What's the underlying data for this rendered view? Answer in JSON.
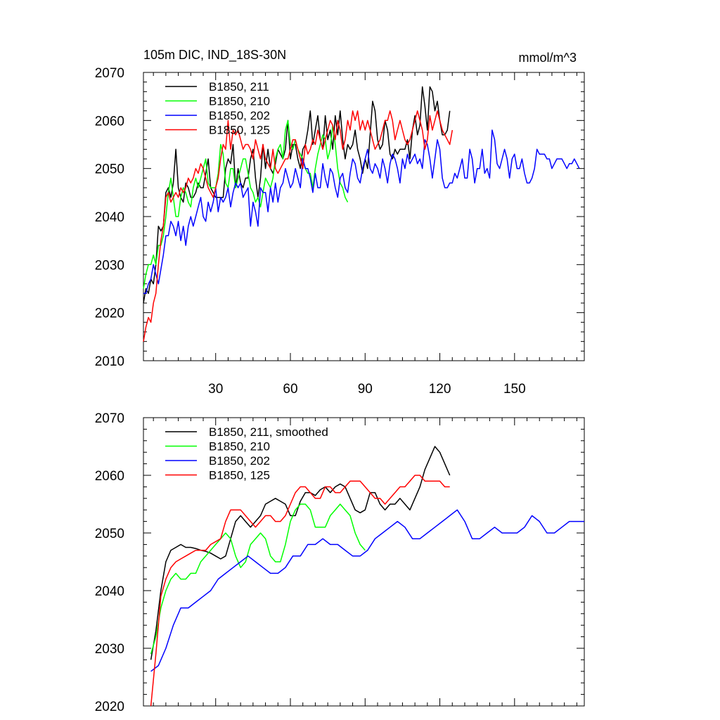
{
  "figure": {
    "title_left": "105m DIC, IND_18S-30N",
    "title_right": "mmol/m^3"
  },
  "chart_data": [
    {
      "type": "line",
      "xlim": [
        1,
        178
      ],
      "ylim": [
        2010,
        2070
      ],
      "xticks": [
        30,
        60,
        90,
        120,
        150
      ],
      "yticks": [
        2010,
        2020,
        2030,
        2040,
        2050,
        2060,
        2070
      ],
      "xticks_labeled": true,
      "grid": false,
      "legend_position": "top-left",
      "series": [
        {
          "name": "B1850, 211",
          "color": "#000000",
          "x_start": 1,
          "y": [
            2022,
            2025,
            2024,
            2027,
            2026,
            2030,
            2038,
            2037,
            2038,
            2045,
            2046,
            2044,
            2047,
            2054,
            2046,
            2044,
            2043,
            2047,
            2046,
            2044,
            2044,
            2045,
            2047,
            2046,
            2046,
            2049,
            2052,
            2046,
            2045,
            2044,
            2044,
            2044,
            2044,
            2050,
            2052,
            2051,
            2055,
            2046,
            2050,
            2047,
            2046,
            2048,
            2048,
            2052,
            2054,
            2048,
            2044,
            2048,
            2055,
            2050,
            2054,
            2050,
            2049,
            2051,
            2054,
            2053,
            2052,
            2054,
            2060,
            2052,
            2055,
            2055,
            2052,
            2050,
            2054,
            2055,
            2058,
            2062,
            2055,
            2058,
            2061,
            2056,
            2054,
            2061,
            2056,
            2058,
            2054,
            2061,
            2057,
            2062,
            2056,
            2052,
            2055,
            2054,
            2055,
            2058,
            2054,
            2052,
            2049,
            2052,
            2050,
            2057,
            2064,
            2062,
            2056,
            2054,
            2055,
            2060,
            2058,
            2053,
            2052,
            2054,
            2053,
            2054,
            2054,
            2054,
            2056,
            2052,
            2058,
            2061,
            2057,
            2059,
            2067,
            2063,
            2058,
            2067,
            2066,
            2062,
            2064,
            2060,
            2057,
            2057,
            2058,
            2062
          ]
        },
        {
          "name": "B1850, 210",
          "color": "#00ff00",
          "x_start": 1,
          "y": [
            2025,
            2028,
            2030,
            2030,
            2032,
            2030,
            2034,
            2034,
            2036,
            2040,
            2045,
            2048,
            2044,
            2040,
            2040,
            2044,
            2046,
            2045,
            2043,
            2042,
            2046,
            2048,
            2046,
            2048,
            2050,
            2052,
            2047,
            2046,
            2046,
            2046,
            2049,
            2055,
            2053,
            2047,
            2046,
            2050,
            2050,
            2046,
            2048,
            2050,
            2052,
            2052,
            2049,
            2046,
            2045,
            2043,
            2044,
            2042,
            2045,
            2048,
            2047,
            2046,
            2048,
            2052,
            2054,
            2055,
            2052,
            2058,
            2060,
            2055,
            2054,
            2056,
            2054,
            2053,
            2052,
            2050,
            2049,
            2049,
            2046,
            2050,
            2053,
            2055,
            2057,
            2056,
            2052,
            2054,
            2059,
            2055,
            2050,
            2047,
            2046,
            2044,
            2043
          ]
        },
        {
          "name": "B1850, 202",
          "color": "#0000ff",
          "x_start": 1,
          "y": [
            2024,
            2024,
            2026,
            2027,
            2030,
            2028,
            2026,
            2029,
            2032,
            2036,
            2036,
            2039,
            2038,
            2036,
            2039,
            2035,
            2038,
            2034,
            2038,
            2040,
            2038,
            2040,
            2042,
            2044,
            2040,
            2039,
            2043,
            2041,
            2043,
            2046,
            2041,
            2044,
            2043,
            2044,
            2046,
            2042,
            2045,
            2047,
            2046,
            2047,
            2044,
            2045,
            2046,
            2038,
            2043,
            2041,
            2038,
            2046,
            2045,
            2045,
            2041,
            2046,
            2043,
            2047,
            2043,
            2046,
            2047,
            2050,
            2048,
            2046,
            2047,
            2050,
            2048,
            2046,
            2052,
            2050,
            2050,
            2048,
            2045,
            2049,
            2046,
            2046,
            2051,
            2048,
            2046,
            2050,
            2049,
            2046,
            2044,
            2048,
            2049,
            2046,
            2045,
            2049,
            2052,
            2051,
            2048,
            2047,
            2050,
            2052,
            2054,
            2050,
            2049,
            2051,
            2050,
            2048,
            2052,
            2050,
            2047,
            2051,
            2053,
            2052,
            2050,
            2047,
            2052,
            2050,
            2053,
            2051,
            2052,
            2053,
            2051,
            2052,
            2050,
            2056,
            2055,
            2052,
            2048,
            2052,
            2056,
            2054,
            2048,
            2046,
            2046,
            2047,
            2047,
            2049,
            2048,
            2050,
            2052,
            2048,
            2048,
            2054,
            2052,
            2047,
            2050,
            2050,
            2054,
            2049,
            2050,
            2048,
            2058,
            2056,
            2051,
            2050,
            2052,
            2054,
            2052,
            2048,
            2052,
            2053,
            2050,
            2050,
            2052,
            2049,
            2047,
            2047,
            2048,
            2050,
            2054,
            2053,
            2053,
            2053,
            2052,
            2052,
            2050,
            2051,
            2052,
            2052,
            2052,
            2051,
            2050,
            2051,
            2051,
            2052,
            2051,
            2050
          ]
        },
        {
          "name": "B1850, 125",
          "color": "#ff0000",
          "x_start": 1,
          "y": [
            2014,
            2017,
            2019,
            2018,
            2022,
            2024,
            2030,
            2035,
            2038,
            2044,
            2045,
            2043,
            2044,
            2045,
            2044,
            2046,
            2045,
            2046,
            2048,
            2047,
            2048,
            2050,
            2049,
            2051,
            2050,
            2048,
            2046,
            2045,
            2044,
            2046,
            2048,
            2052,
            2055,
            2054,
            2060,
            2054,
            2058,
            2057,
            2058,
            2056,
            2054,
            2055,
            2055,
            2054,
            2052,
            2056,
            2054,
            2052,
            2055,
            2052,
            2051,
            2050,
            2054,
            2050,
            2049,
            2050,
            2051,
            2052,
            2052,
            2054,
            2056,
            2056,
            2054,
            2052,
            2050,
            2055,
            2053,
            2054,
            2056,
            2055,
            2058,
            2056,
            2054,
            2056,
            2058,
            2060,
            2059,
            2056,
            2060,
            2058,
            2054,
            2056,
            2060,
            2058,
            2062,
            2060,
            2062,
            2058,
            2060,
            2058,
            2060,
            2058,
            2056,
            2054,
            2055,
            2056,
            2058,
            2060,
            2060,
            2062,
            2060,
            2056,
            2058,
            2060,
            2058,
            2056,
            2055,
            2056,
            2058,
            2060,
            2062,
            2060,
            2058,
            2054,
            2056,
            2061,
            2058,
            2060,
            2062,
            2060,
            2058,
            2057,
            2056,
            2055,
            2058
          ]
        }
      ]
    },
    {
      "type": "line",
      "xlim": [
        1,
        178
      ],
      "ylim": [
        2020,
        2070
      ],
      "xticks": [
        30,
        60,
        90,
        120,
        150
      ],
      "yticks": [
        2020,
        2030,
        2040,
        2050,
        2060,
        2070
      ],
      "xticks_labeled": false,
      "grid": false,
      "legend_position": "top-left",
      "series": [
        {
          "name": "B1850, 211, smoothed",
          "color": "#000000",
          "x": [
            4,
            6,
            8,
            10,
            12,
            14,
            16,
            18,
            20,
            22,
            24,
            26,
            28,
            30,
            32,
            34,
            36,
            38,
            40,
            42,
            44,
            46,
            48,
            50,
            52,
            54,
            56,
            58,
            60,
            62,
            64,
            66,
            68,
            70,
            72,
            74,
            76,
            78,
            80,
            82,
            84,
            86,
            88,
            90,
            92,
            94,
            96,
            98,
            100,
            102,
            104,
            106,
            108,
            110,
            112,
            114,
            116,
            118,
            120,
            122,
            124
          ],
          "y": [
            2028,
            2033,
            2040,
            2045,
            2047,
            2047.5,
            2048,
            2047.5,
            2047.5,
            2047.3,
            2047,
            2046.8,
            2046.5,
            2046,
            2045.5,
            2046,
            2049,
            2052,
            2053,
            2052,
            2051,
            2052,
            2053,
            2055,
            2055.5,
            2056,
            2055.5,
            2055,
            2053,
            2053,
            2055.5,
            2057,
            2057,
            2056.5,
            2057.5,
            2058,
            2057,
            2058,
            2058.5,
            2058,
            2056,
            2054,
            2053.5,
            2054,
            2057,
            2057,
            2055,
            2054,
            2055,
            2055,
            2056,
            2055,
            2054,
            2056,
            2058,
            2061,
            2063,
            2065,
            2064,
            2062,
            2060
          ]
        },
        {
          "name": "B1850, 210",
          "color": "#00ff00",
          "x": [
            4,
            6,
            8,
            10,
            12,
            14,
            16,
            18,
            20,
            22,
            24,
            26,
            28,
            30,
            32,
            34,
            36,
            38,
            40,
            42,
            44,
            46,
            48,
            50,
            52,
            54,
            56,
            58,
            60,
            62,
            64,
            66,
            68,
            70,
            72,
            74,
            76,
            78,
            80,
            82,
            84,
            86,
            88,
            90
          ],
          "y": [
            2029,
            2032,
            2037,
            2040,
            2042,
            2043,
            2042,
            2042,
            2043,
            2043,
            2045,
            2046,
            2047,
            2048,
            2049,
            2050,
            2049,
            2046,
            2044,
            2045,
            2048,
            2049,
            2050,
            2049,
            2046,
            2045,
            2045,
            2048,
            2052,
            2054,
            2055,
            2055,
            2054,
            2051,
            2051,
            2051,
            2053,
            2054,
            2055,
            2054,
            2053,
            2050,
            2048,
            2047
          ]
        },
        {
          "name": "B1850, 202",
          "color": "#0000ff",
          "x": [
            4,
            7,
            10,
            13,
            16,
            19,
            22,
            25,
            28,
            31,
            34,
            37,
            40,
            43,
            46,
            49,
            52,
            55,
            58,
            61,
            64,
            67,
            70,
            73,
            76,
            79,
            82,
            85,
            88,
            91,
            94,
            97,
            100,
            103,
            106,
            109,
            112,
            115,
            118,
            121,
            124,
            127,
            130,
            133,
            136,
            139,
            142,
            145,
            148,
            151,
            154,
            157,
            160,
            163,
            166,
            169,
            172,
            175,
            178
          ],
          "y": [
            2026,
            2027,
            2030,
            2034,
            2037,
            2037,
            2038,
            2039,
            2040,
            2042,
            2043,
            2044,
            2045,
            2046,
            2045,
            2044,
            2043,
            2043,
            2044,
            2046,
            2046,
            2048,
            2048,
            2049,
            2048,
            2048,
            2047,
            2046,
            2046,
            2047,
            2049,
            2050,
            2051,
            2052,
            2051,
            2049,
            2049,
            2050,
            2051,
            2052,
            2053,
            2054,
            2052,
            2049,
            2049,
            2050,
            2051,
            2050,
            2050,
            2050,
            2051,
            2053,
            2052,
            2050,
            2050,
            2051,
            2052,
            2052,
            2052
          ]
        },
        {
          "name": "B1850, 125",
          "color": "#ff0000",
          "x": [
            4,
            6,
            8,
            10,
            12,
            14,
            16,
            18,
            20,
            22,
            24,
            26,
            28,
            30,
            32,
            34,
            36,
            38,
            40,
            42,
            44,
            46,
            48,
            50,
            52,
            54,
            56,
            58,
            60,
            62,
            64,
            66,
            68,
            70,
            72,
            74,
            76,
            78,
            80,
            82,
            84,
            86,
            88,
            90,
            92,
            94,
            96,
            98,
            100,
            102,
            104,
            106,
            108,
            110,
            112,
            114,
            116,
            118,
            120,
            122,
            124
          ],
          "y": [
            2020,
            2029,
            2039,
            2042,
            2044,
            2045,
            2045.5,
            2046,
            2046.5,
            2047,
            2047,
            2047,
            2048,
            2048.5,
            2049,
            2052,
            2054,
            2054,
            2054,
            2053,
            2052,
            2051,
            2052,
            2053,
            2053,
            2052,
            2052,
            2053,
            2055,
            2057,
            2058,
            2058,
            2057,
            2056,
            2056,
            2058,
            2058,
            2057,
            2057,
            2058,
            2059,
            2059,
            2059,
            2058,
            2057,
            2056,
            2056,
            2055,
            2056,
            2057,
            2058,
            2058,
            2059,
            2060,
            2060,
            2059,
            2059,
            2059,
            2059,
            2058,
            2058
          ]
        }
      ]
    }
  ]
}
